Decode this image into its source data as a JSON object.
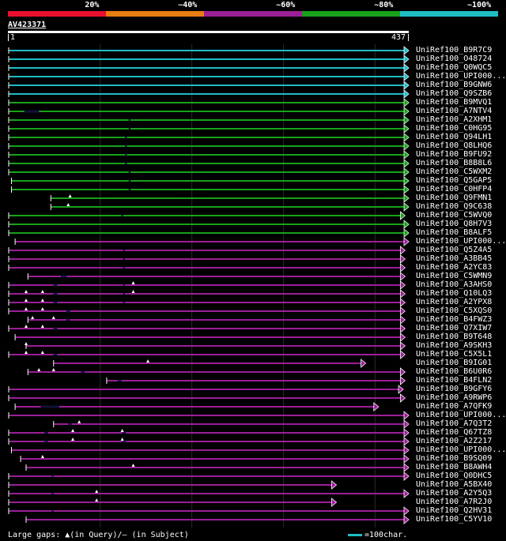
{
  "header": {
    "scale_labels": [
      "20%",
      "~40%",
      "~60%",
      "~80%",
      "~100%"
    ],
    "scale_colors": [
      "#e8102e",
      "#e87d12",
      "#9c1f97",
      "#18a21b",
      "#1fbdc4"
    ]
  },
  "query": {
    "id": "AV423371",
    "start": "1",
    "end": "437"
  },
  "colors": {
    "cyan": "#1fbdc4",
    "green": "#18a21b",
    "purple": "#9c1f97",
    "background": "#000000",
    "gap": "#10103a"
  },
  "hits": [
    {
      "label": "UniRef100_B9R7C9",
      "color": "cyan",
      "start": 1,
      "end": 437
    },
    {
      "label": "UniRef100_O48724",
      "color": "cyan",
      "start": 1,
      "end": 437
    },
    {
      "label": "UniRef100_Q0WQC5",
      "color": "cyan",
      "start": 1,
      "end": 437
    },
    {
      "label": "UniRef100_UPI000...",
      "color": "cyan",
      "start": 1,
      "end": 437
    },
    {
      "label": "UniRef100_B9GNW6",
      "color": "cyan",
      "start": 1,
      "end": 437
    },
    {
      "label": "UniRef100_Q9SZB6",
      "color": "cyan",
      "start": 1,
      "end": 437
    },
    {
      "label": "UniRef100_B9MVQ1",
      "color": "green",
      "start": 1,
      "end": 437
    },
    {
      "label": "UniRef100_A7NTV4",
      "color": "green",
      "start": 1,
      "end": 437,
      "gaps": [
        [
          18,
          34
        ]
      ]
    },
    {
      "label": "UniRef100_A2XHM1",
      "color": "green",
      "start": 1,
      "end": 437,
      "gaps": [
        [
          132,
          134
        ]
      ]
    },
    {
      "label": "UniRef100_C0HG95",
      "color": "green",
      "start": 1,
      "end": 437,
      "gaps": [
        [
          132,
          134
        ]
      ]
    },
    {
      "label": "UniRef100_Q94LH1",
      "color": "green",
      "start": 1,
      "end": 437,
      "gaps": [
        [
          128,
          130
        ]
      ]
    },
    {
      "label": "UniRef100_Q8LHQ6",
      "color": "green",
      "start": 1,
      "end": 437,
      "gaps": [
        [
          128,
          130
        ]
      ]
    },
    {
      "label": "UniRef100_B9FU92",
      "color": "green",
      "start": 1,
      "end": 437,
      "gaps": [
        [
          128,
          130
        ]
      ]
    },
    {
      "label": "UniRef100_B8B8L6",
      "color": "green",
      "start": 1,
      "end": 437,
      "gaps": [
        [
          128,
          130
        ]
      ]
    },
    {
      "label": "UniRef100_C5WXM2",
      "color": "green",
      "start": 1,
      "end": 437,
      "gaps": [
        [
          132,
          134
        ]
      ]
    },
    {
      "label": "UniRef100_Q5GAP5",
      "color": "green",
      "start": 4,
      "end": 437,
      "gaps": [
        [
          132,
          134
        ]
      ]
    },
    {
      "label": "UniRef100_C0HFP4",
      "color": "green",
      "start": 4,
      "end": 437,
      "gaps": [
        [
          132,
          134
        ]
      ]
    },
    {
      "label": "UniRef100_Q9FMN1",
      "color": "green",
      "start": 47,
      "end": 437,
      "ins": [
        68
      ]
    },
    {
      "label": "UniRef100_Q9C638",
      "color": "green",
      "start": 47,
      "end": 437,
      "ins": [
        66
      ]
    },
    {
      "label": "UniRef100_C5WVQ0",
      "color": "green",
      "start": 1,
      "end": 433,
      "gaps": [
        [
          124,
          126
        ]
      ]
    },
    {
      "label": "UniRef100_Q8H7V3",
      "color": "green",
      "start": 1,
      "end": 437
    },
    {
      "label": "UniRef100_B8ALF5",
      "color": "green",
      "start": 1,
      "end": 437
    },
    {
      "label": "UniRef100_UPI000...",
      "color": "purple",
      "start": 8,
      "end": 437
    },
    {
      "label": "UniRef100_Q5Z4A5",
      "color": "purple",
      "start": 1,
      "end": 433,
      "gaps": [
        [
          126,
          128
        ]
      ]
    },
    {
      "label": "UniRef100_A3BB45",
      "color": "purple",
      "start": 1,
      "end": 433,
      "gaps": [
        [
          126,
          128
        ]
      ]
    },
    {
      "label": "UniRef100_A2YC83",
      "color": "purple",
      "start": 1,
      "end": 433,
      "gaps": [
        [
          126,
          128
        ]
      ]
    },
    {
      "label": "UniRef100_C5WMN9",
      "color": "purple",
      "start": 22,
      "end": 433,
      "gaps": [
        [
          58,
          64
        ]
      ]
    },
    {
      "label": "UniRef100_A3AHS0",
      "color": "purple",
      "start": 1,
      "end": 433,
      "ins": [
        137
      ],
      "gaps": [
        [
          50,
          54
        ],
        [
          126,
          128
        ]
      ]
    },
    {
      "label": "UniRef100_Q10LQ3",
      "color": "purple",
      "start": 1,
      "end": 433,
      "ins": [
        20,
        38,
        137
      ],
      "gaps": [
        [
          50,
          54
        ],
        [
          126,
          128
        ]
      ]
    },
    {
      "label": "UniRef100_A2YPX8",
      "color": "purple",
      "start": 1,
      "end": 433,
      "ins": [
        20,
        38
      ],
      "gaps": [
        [
          50,
          54
        ],
        [
          126,
          128
        ]
      ]
    },
    {
      "label": "UniRef100_C5XQS0",
      "color": "purple",
      "start": 1,
      "end": 433,
      "ins": [
        20,
        38
      ],
      "gaps": [
        [
          64,
          68
        ]
      ]
    },
    {
      "label": "UniRef100_B4FWZ3",
      "color": "purple",
      "start": 22,
      "end": 433,
      "ins": [
        27,
        50
      ],
      "gaps": [
        [
          64,
          68
        ]
      ]
    },
    {
      "label": "UniRef100_Q7XIW7",
      "color": "purple",
      "start": 1,
      "end": 433,
      "ins": [
        20,
        38
      ],
      "gaps": [
        [
          50,
          54
        ]
      ]
    },
    {
      "label": "UniRef100_B9T648",
      "color": "purple",
      "start": 8,
      "end": 433
    },
    {
      "label": "UniRef100_A9SKH3",
      "color": "purple",
      "start": 20,
      "end": 433,
      "ins": [
        20
      ]
    },
    {
      "label": "UniRef100_C5X5L1",
      "color": "purple",
      "start": 1,
      "end": 433,
      "ins": [
        20,
        38
      ],
      "gaps": [
        [
          50,
          54
        ]
      ]
    },
    {
      "label": "UniRef100_B9IG01",
      "color": "purple",
      "start": 50,
      "end": 390,
      "ins": [
        153
      ]
    },
    {
      "label": "UniRef100_B6U0R6",
      "color": "purple",
      "start": 22,
      "end": 433,
      "ins": [
        34,
        50
      ],
      "gaps": [
        [
          80,
          84
        ]
      ]
    },
    {
      "label": "UniRef100_B4FLN2",
      "color": "purple",
      "start": 108,
      "end": 433,
      "gaps": [
        [
          120,
          124
        ]
      ]
    },
    {
      "label": "UniRef100_B9GFY6",
      "color": "purple",
      "start": 1,
      "end": 431
    },
    {
      "label": "UniRef100_A9RWP6",
      "color": "purple",
      "start": 1,
      "end": 433
    },
    {
      "label": "UniRef100_A7QFK9",
      "color": "purple",
      "start": 8,
      "end": 404,
      "gaps": [
        [
          36,
          56
        ]
      ]
    },
    {
      "label": "UniRef100_UPI000...",
      "color": "purple",
      "start": 1,
      "end": 437
    },
    {
      "label": "UniRef100_A7Q3T2",
      "color": "purple",
      "start": 50,
      "end": 437,
      "ins": [
        78
      ],
      "gaps": [
        [
          66,
          70
        ]
      ]
    },
    {
      "label": "UniRef100_Q67TZ8",
      "color": "purple",
      "start": 1,
      "end": 437,
      "ins": [
        71,
        125
      ],
      "gaps": [
        [
          40,
          44
        ],
        [
          125,
          129
        ]
      ]
    },
    {
      "label": "UniRef100_A2Z217",
      "color": "purple",
      "start": 1,
      "end": 437,
      "ins": [
        71,
        125
      ],
      "gaps": [
        [
          40,
          44
        ],
        [
          125,
          129
        ]
      ]
    },
    {
      "label": "UniRef100_UPI000...",
      "color": "purple",
      "start": 4,
      "end": 437
    },
    {
      "label": "UniRef100_B9SQ09",
      "color": "purple",
      "start": 14,
      "end": 437,
      "ins": [
        38
      ]
    },
    {
      "label": "UniRef100_B8AWH4",
      "color": "purple",
      "start": 20,
      "end": 437,
      "ins": [
        137
      ]
    },
    {
      "label": "UniRef100_Q0DHC5",
      "color": "purple",
      "start": 1,
      "end": 437,
      "gaps": [
        [
          48,
          50
        ]
      ]
    },
    {
      "label": "UniRef100_A5BX40",
      "color": "purple",
      "start": 1,
      "end": 358
    },
    {
      "label": "UniRef100_A2Y5Q3",
      "color": "purple",
      "start": 1,
      "end": 437,
      "ins": [
        97
      ],
      "gaps": [
        [
          48,
          50
        ]
      ]
    },
    {
      "label": "UniRef100_A7R2J0",
      "color": "purple",
      "start": 1,
      "end": 358,
      "ins": [
        97
      ]
    },
    {
      "label": "UniRef100_Q2HV31",
      "color": "purple",
      "start": 1,
      "end": 437,
      "gaps": [
        [
          48,
          50
        ]
      ]
    },
    {
      "label": "UniRef100_C5YV10",
      "color": "purple",
      "start": 20,
      "end": 437
    }
  ],
  "legend": {
    "text": "Large gaps: ▲(in Query)/– (in Subject)",
    "scale_text": "=100char."
  }
}
